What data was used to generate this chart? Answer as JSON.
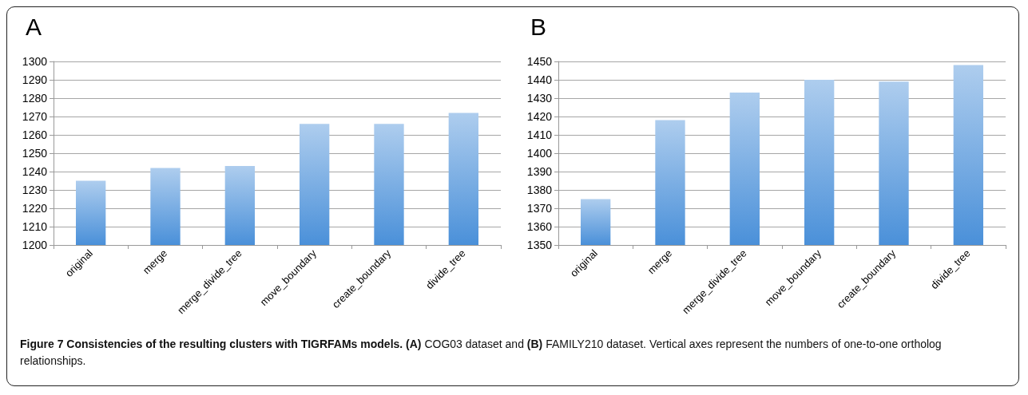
{
  "chart_data": [
    {
      "type": "bar",
      "title": "A",
      "categories": [
        "original",
        "merge",
        "merge_divide_tree",
        "move_boundary",
        "create_boundary",
        "divide_tree"
      ],
      "values": [
        1235,
        1242,
        1243,
        1266,
        1266,
        1272
      ],
      "color": "#4a90d9",
      "ylim": [
        1200,
        1300
      ],
      "yticks": [
        1200,
        1210,
        1220,
        1230,
        1240,
        1250,
        1260,
        1270,
        1280,
        1290,
        1300
      ],
      "grid": "y",
      "annotations": [
        "Figure 7 Consistencies of the resulting clusters with TIGRFAMs models.",
        "(A)",
        "COG03 dataset and",
        "(B)",
        "FAMILY210 dataset. Vertical axes represent the numbers of one-to-one ortholog relationships."
      ]
    },
    {
      "type": "bar",
      "title": "B",
      "categories": [
        "original",
        "merge",
        "merge_divide_tree",
        "move_boundary",
        "create_boundary",
        "divide_tree"
      ],
      "values": [
        1375,
        1418,
        1433,
        1440,
        1439,
        1448
      ],
      "color": "#4a90d9",
      "ylim": [
        1350,
        1450
      ],
      "yticks": [
        1350,
        1360,
        1370,
        1380,
        1390,
        1400,
        1410,
        1420,
        1430,
        1440,
        1450
      ],
      "grid": "y"
    }
  ]
}
